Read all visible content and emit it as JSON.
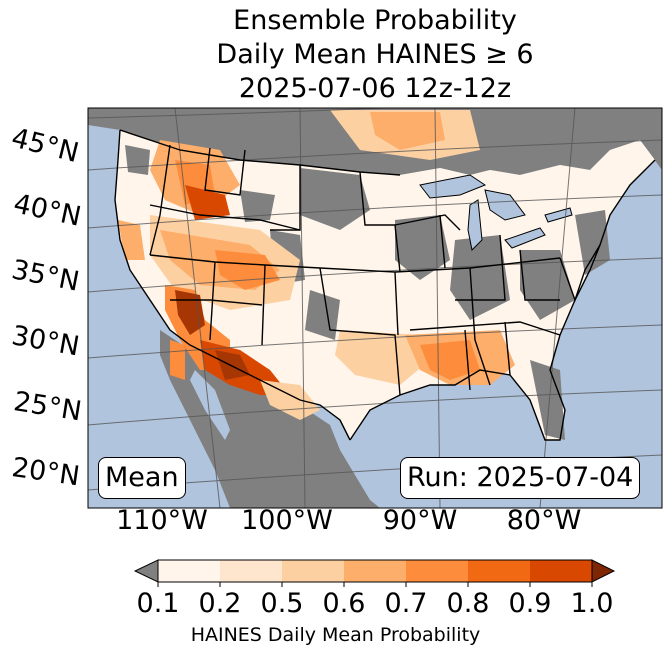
{
  "title": {
    "line1": "Ensemble Probability",
    "line2": "Daily Mean HAINES ≥ 6",
    "line3": "2025-07-06 12z-12z"
  },
  "map": {
    "lat_labels": [
      "45°N",
      "40°N",
      "35°N",
      "30°N",
      "25°N",
      "20°N"
    ],
    "lon_labels": [
      "110°W",
      "100°W",
      "90°W",
      "80°W"
    ],
    "stat_label": "Mean",
    "run_label": "Run: 2025-07-04",
    "colors": {
      "ocean": "#b0c4de",
      "land_nodata": "#808080",
      "low": "#fff5eb",
      "borders": "#000000"
    }
  },
  "colorbar": {
    "ticks": [
      "0.1",
      "0.2",
      "0.5",
      "0.6",
      "0.7",
      "0.8",
      "0.9",
      "1.0"
    ],
    "colors": [
      "#fff5eb",
      "#fee6ce",
      "#fdd0a2",
      "#fdae6b",
      "#fd8d3c",
      "#f16913",
      "#d94801",
      "#a63603"
    ],
    "under_color": "#808080",
    "over_color": "#7f2704",
    "label": "HAINES Daily Mean Probability"
  }
}
